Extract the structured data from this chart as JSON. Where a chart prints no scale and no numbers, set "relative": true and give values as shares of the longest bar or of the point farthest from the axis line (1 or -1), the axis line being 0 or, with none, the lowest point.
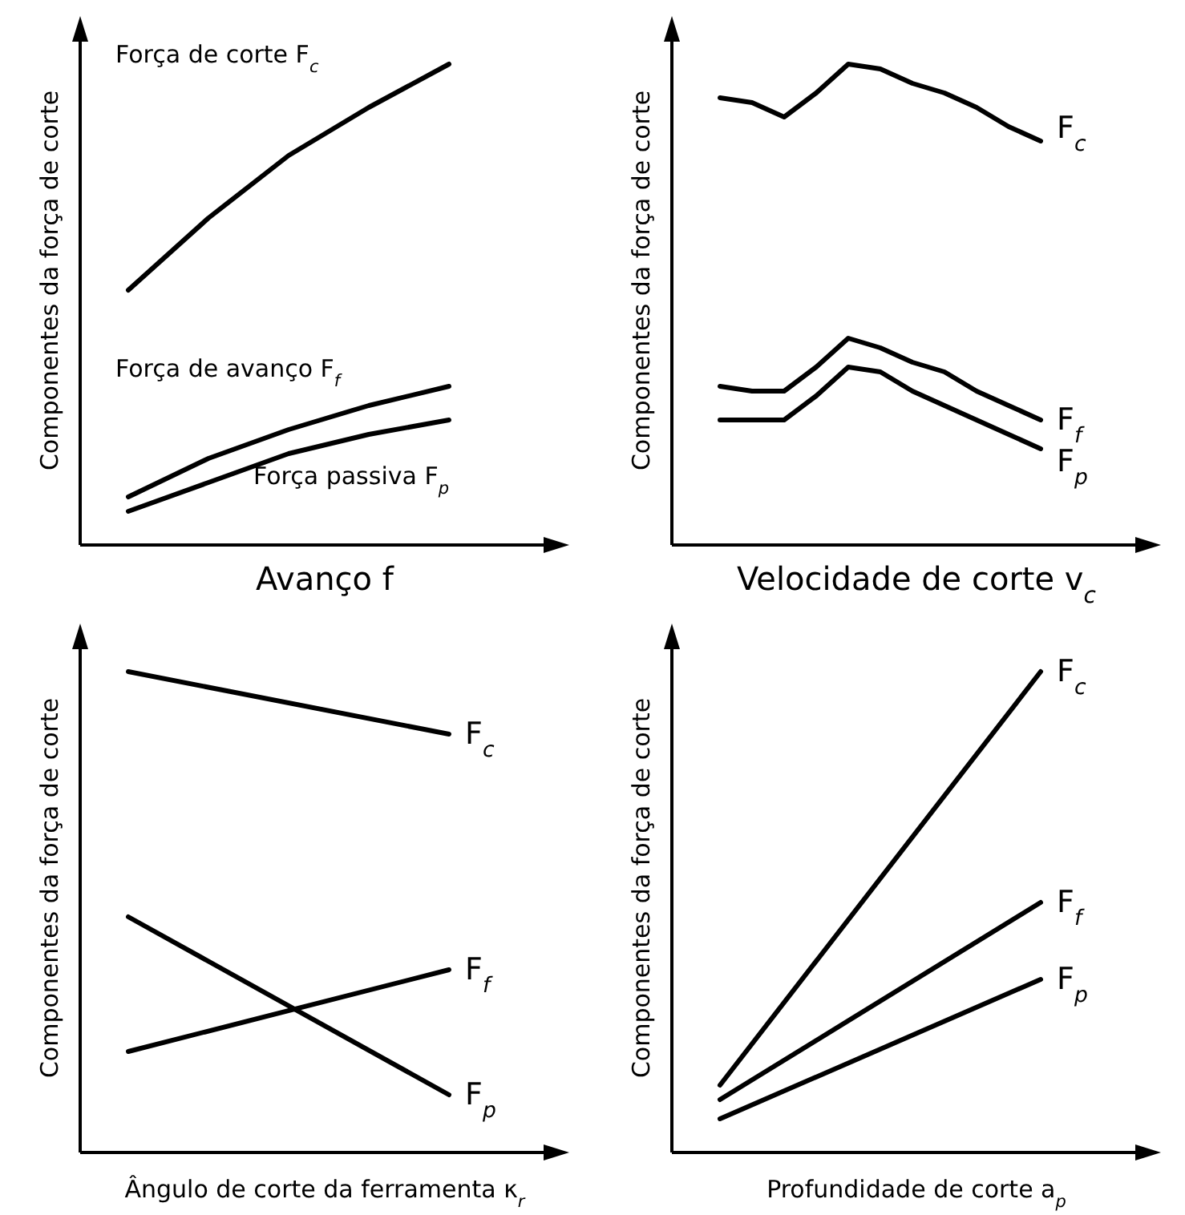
{
  "chart_data": [
    {
      "type": "line",
      "relative": true,
      "xlabel": "Avanço f",
      "ylabel": "Componentes da força de corte",
      "categories": [
        null,
        null,
        null,
        null,
        null
      ],
      "legend": false,
      "series": [
        {
          "name": "Força de corte F$_{c}$",
          "color": "#000000",
          "values": [
            0.53,
            0.68,
            0.81,
            0.91,
            1
          ]
        },
        {
          "name": "Força de avanço F$_{f}$",
          "color": "#000000",
          "values": [
            0.1,
            0.18,
            0.24,
            0.29,
            0.33
          ]
        },
        {
          "name": "Força passiva F$_{p}$",
          "color": "#000000",
          "values": [
            0.07,
            0.13,
            0.19,
            0.23,
            0.26
          ]
        }
      ]
    },
    {
      "type": "line",
      "relative": true,
      "xlabel": "Velocidade de corte v$_{c}$",
      "ylabel": "Componentes da força de corte",
      "categories": [
        null,
        null,
        null,
        null,
        null,
        null,
        null,
        null,
        null,
        null,
        null
      ],
      "legend": false,
      "series": [
        {
          "name": "F$_{c}$",
          "color": "#000000",
          "values": [
            0.93,
            0.92,
            0.89,
            0.94,
            1,
            0.99,
            0.96,
            0.94,
            0.91,
            0.87,
            0.84
          ]
        },
        {
          "name": "F$_{f}$",
          "color": "#000000",
          "values": [
            0.33,
            0.32,
            0.32,
            0.37,
            0.43,
            0.41,
            0.38,
            0.36,
            0.32,
            0.29,
            0.26
          ]
        },
        {
          "name": "F$_{p}$",
          "color": "#000000",
          "values": [
            0.26,
            0.26,
            0.26,
            0.31,
            0.37,
            0.36,
            0.32,
            0.29,
            0.26,
            0.23,
            0.2
          ]
        }
      ]
    },
    {
      "type": "line",
      "relative": true,
      "xlabel": "Ângulo de corte da ferramenta κ$_{r}$",
      "ylabel": "Componentes da força de corte",
      "categories": [
        null,
        null
      ],
      "legend": false,
      "series": [
        {
          "name": "F$_{c}$",
          "color": "#000000",
          "values": [
            1,
            0.87
          ]
        },
        {
          "name": "F$_{f}$",
          "color": "#000000",
          "values": [
            0.21,
            0.38
          ]
        },
        {
          "name": "F$_{p}$",
          "color": "#000000",
          "values": [
            0.49,
            0.12
          ]
        }
      ]
    },
    {
      "type": "line",
      "relative": true,
      "xlabel": "Profundidade de corte a$_{p}$",
      "ylabel": "Componentes da força de corte",
      "categories": [
        null,
        null
      ],
      "legend": false,
      "series": [
        {
          "name": "F$_{c}$",
          "color": "#000000",
          "values": [
            0.14,
            1
          ]
        },
        {
          "name": "F$_{f}$",
          "color": "#000000",
          "values": [
            0.11,
            0.52
          ]
        },
        {
          "name": "F$_{p}$",
          "color": "#000000",
          "values": [
            0.07,
            0.36
          ]
        }
      ]
    }
  ]
}
